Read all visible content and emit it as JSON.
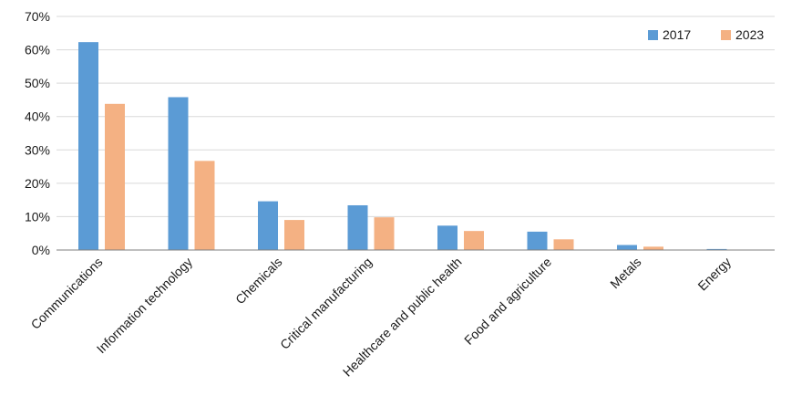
{
  "chart_data": {
    "type": "bar",
    "categories": [
      "Communications",
      "Information technology",
      "Chemicals",
      "Critical manufacturing",
      "Healthcare and public health",
      "Food and agriculture",
      "Metals",
      "Energy"
    ],
    "series": [
      {
        "name": "2017",
        "color": "#5b9bd5",
        "values": [
          62.3,
          45.8,
          14.6,
          13.4,
          7.3,
          5.5,
          1.5,
          0.3
        ]
      },
      {
        "name": "2023",
        "color": "#f4b183",
        "values": [
          43.8,
          26.7,
          9.0,
          9.8,
          5.7,
          3.2,
          1.0,
          0.0
        ]
      }
    ],
    "yticks": [
      "0%",
      "10%",
      "20%",
      "30%",
      "40%",
      "50%",
      "60%",
      "70%"
    ],
    "ylim": [
      0,
      70
    ],
    "ylabel_format": "percent",
    "grid": true,
    "legend": "top-right",
    "title": "",
    "xlabel": "",
    "ylabel": ""
  }
}
